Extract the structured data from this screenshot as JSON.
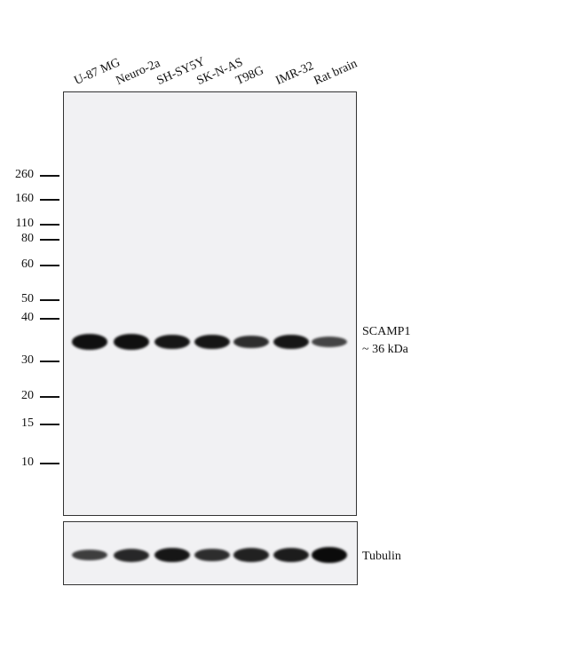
{
  "lanes": [
    "U-87 MG",
    "Neuro-2a",
    "SH-SY5Y",
    "SK-N-AS",
    "T98G",
    "IMR-32",
    "Rat brain"
  ],
  "markers": [
    "260",
    "160",
    "110",
    "80",
    "60",
    "50",
    "40",
    "30",
    "20",
    "15",
    "10"
  ],
  "target": {
    "name": "SCAMP1",
    "size": "~ 36 kDa",
    "relative_intensity": [
      0.95,
      0.95,
      0.9,
      0.9,
      0.7,
      0.9,
      0.5
    ]
  },
  "loading_control": {
    "name": "Tubulin",
    "relative_intensity": [
      0.55,
      0.75,
      0.9,
      0.7,
      0.8,
      0.85,
      1.0
    ]
  }
}
